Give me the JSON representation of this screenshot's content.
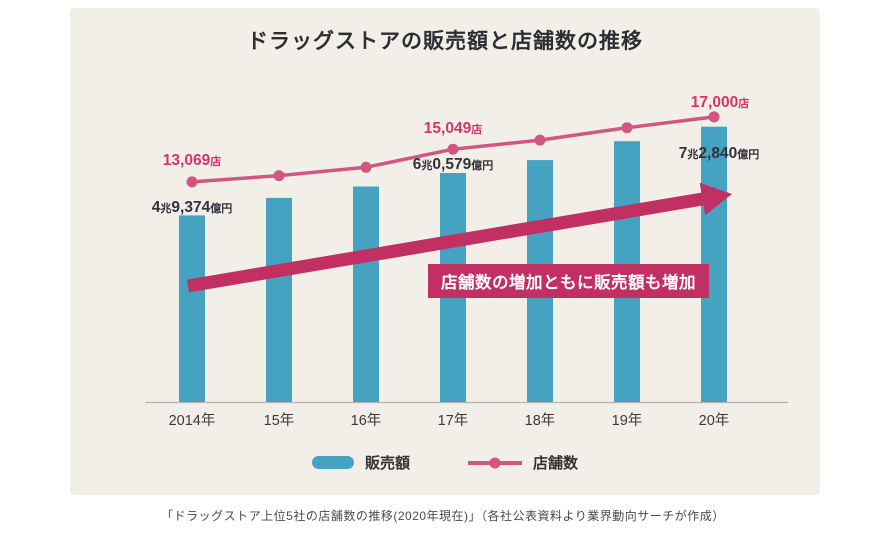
{
  "title": "ドラッグストアの販売額と店舗数の推移",
  "annotation_banner": "店舗数の増加ともに販売額も増加",
  "caption": "「ドラッグストア上位5社の店舗数の推移(2020年現在)」（各社公表資料より業界動向サーチが作成）",
  "legend": [
    {
      "label": "販売額",
      "marker": "bar",
      "color": "#46A2C1"
    },
    {
      "label": "店舗数",
      "marker": "line-dot",
      "color": "#D25582"
    }
  ],
  "accent_colors": {
    "page_background": "#FFFFFF",
    "panel_background": "#F2EFE8",
    "bar": "#46A2C1",
    "line": "#D25582",
    "sales_label_text": "#32323C",
    "store_label_text": "#D6336C",
    "arrow_and_banner": "#C22F63",
    "axis": "#B7B3A9",
    "tick_text": "#3A3A3A"
  },
  "chart_data": {
    "type": "combo (bar + line)",
    "title": "ドラッグストアの販売額と店舗数の推移",
    "categories": [
      "2014年",
      "15年",
      "16年",
      "17年",
      "18年",
      "19年",
      "20年"
    ],
    "series": [
      {
        "name": "販売額",
        "type": "bar",
        "unit": "億円",
        "color": "#46A2C1",
        "values": [
          49374,
          54000,
          57000,
          60579,
          64000,
          69000,
          72840
        ],
        "value_labels": [
          "4兆9,374億円",
          null,
          null,
          "6兆0,579億円",
          null,
          null,
          "7兆2,840億円"
        ]
      },
      {
        "name": "店舗数",
        "type": "line",
        "unit": "店",
        "color": "#D25582",
        "values": [
          13069,
          13450,
          13950,
          15049,
          15600,
          16350,
          17000
        ],
        "value_labels": [
          "13,069店",
          null,
          null,
          "15,049店",
          null,
          null,
          "17,000店"
        ]
      }
    ],
    "annotation": "店舗数の増加ともに販売額も増加",
    "legend_position": "bottom-center",
    "grid": false,
    "y_axis_visible": false
  }
}
